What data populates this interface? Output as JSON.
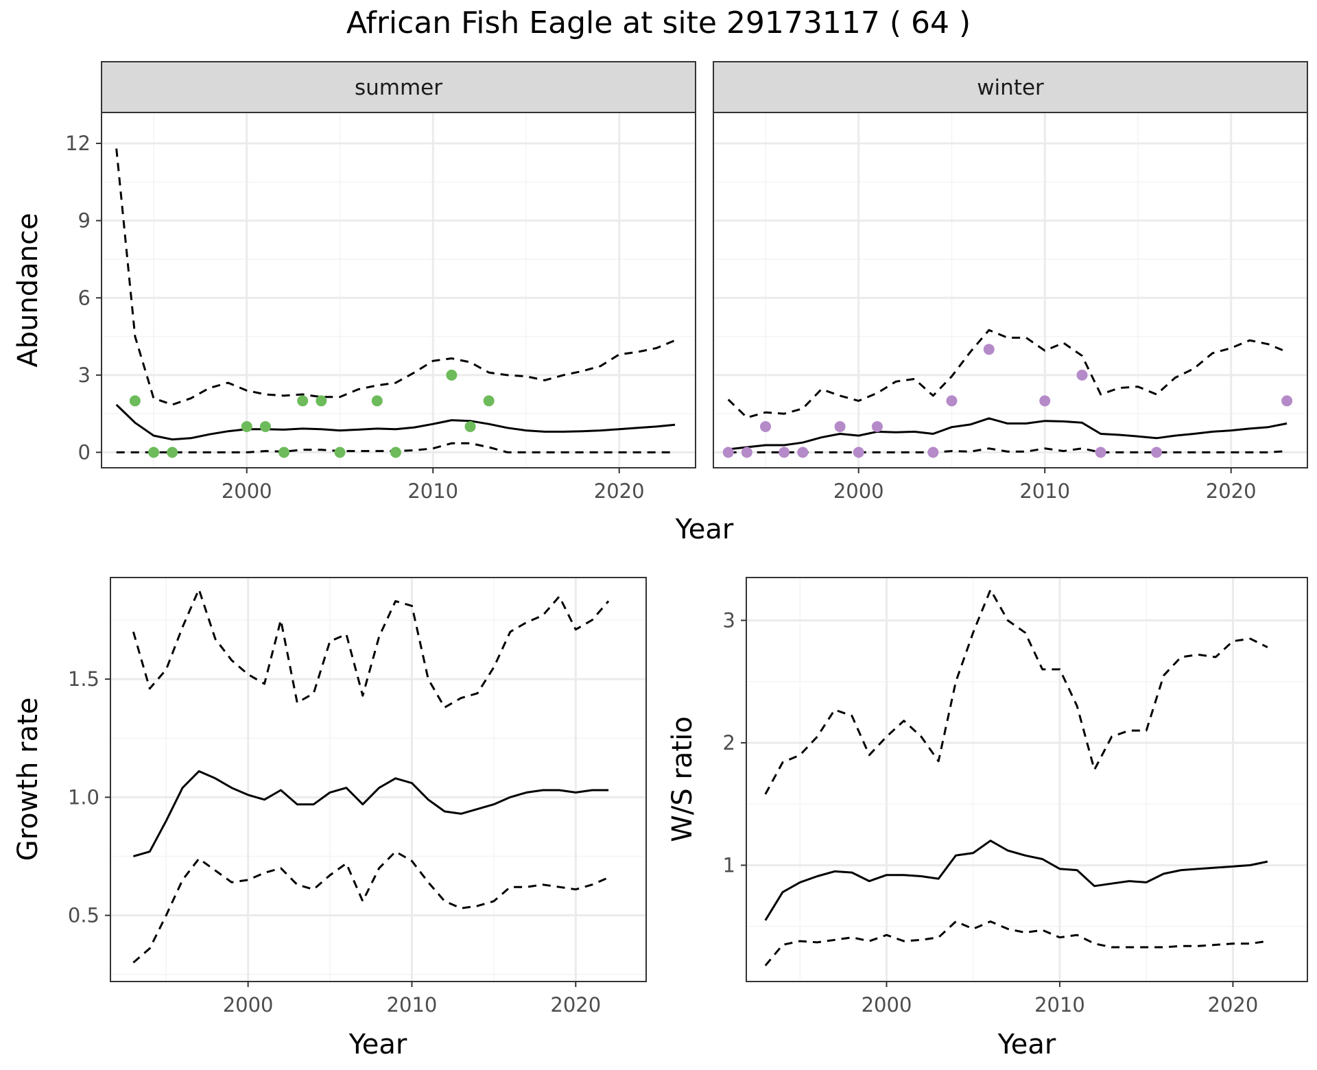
{
  "title": "African Fish Eagle at site 29173117 ( 64 )",
  "colors": {
    "summer_points": "#6dbb5b",
    "winter_points": "#b58ac9",
    "strip_bg": "#d9d9d9",
    "grid_major": "#ebebeb",
    "grid_minor": "#f4f4f4",
    "line": "#000000"
  },
  "chart_data": [
    {
      "id": "abundance_summer",
      "type": "line",
      "strip_label": "summer",
      "xlabel": "Year",
      "ylabel": "Abundance",
      "xlim": [
        1992.2,
        2024.1
      ],
      "ylim": [
        -0.6,
        13.2
      ],
      "xticks": [
        2000,
        2010,
        2020
      ],
      "yticks": [
        0,
        3,
        6,
        9,
        12
      ],
      "grid": true,
      "x": [
        1993,
        1994,
        1995,
        1996,
        1997,
        1998,
        1999,
        2000,
        2001,
        2002,
        2003,
        2004,
        2005,
        2006,
        2007,
        2008,
        2009,
        2010,
        2011,
        2012,
        2013,
        2014,
        2015,
        2016,
        2017,
        2018,
        2019,
        2020,
        2021,
        2022,
        2023
      ],
      "series": [
        {
          "name": "",
          "style": "solid",
          "values": [
            1.85,
            1.15,
            0.65,
            0.5,
            0.55,
            0.7,
            0.82,
            0.9,
            0.9,
            0.88,
            0.92,
            0.9,
            0.85,
            0.88,
            0.92,
            0.9,
            0.97,
            1.1,
            1.25,
            1.22,
            1.1,
            0.95,
            0.85,
            0.8,
            0.8,
            0.82,
            0.85,
            0.9,
            0.95,
            1.0,
            1.07
          ]
        },
        {
          "name": "",
          "style": "dashed",
          "values": [
            11.8,
            4.5,
            2.1,
            1.85,
            2.1,
            2.5,
            2.7,
            2.4,
            2.25,
            2.2,
            2.25,
            2.15,
            2.15,
            2.45,
            2.6,
            2.7,
            3.1,
            3.55,
            3.65,
            3.5,
            3.1,
            3.0,
            2.95,
            2.8,
            3.0,
            3.15,
            3.35,
            3.8,
            3.9,
            4.05,
            4.35
          ]
        },
        {
          "name": "",
          "style": "dashed",
          "values": [
            0,
            0,
            0,
            0,
            0,
            0,
            0,
            0,
            0.05,
            0.03,
            0.1,
            0.1,
            0.05,
            0.05,
            0.05,
            0.05,
            0.08,
            0.15,
            0.35,
            0.35,
            0.2,
            0,
            0,
            0,
            0,
            0,
            0,
            0,
            0,
            0,
            0
          ]
        }
      ],
      "points": {
        "x": [
          1994,
          1995,
          1996,
          2000,
          2001,
          2002,
          2003,
          2004,
          2005,
          2007,
          2008,
          2011,
          2012,
          2013
        ],
        "y": [
          2,
          0,
          0,
          1,
          1,
          0,
          2,
          2,
          0,
          2,
          0,
          3,
          1,
          2
        ]
      }
    },
    {
      "id": "abundance_winter",
      "type": "line",
      "strip_label": "winter",
      "xlabel": "Year",
      "ylabel": "Abundance",
      "xlim": [
        1992.2,
        2024.1
      ],
      "ylim": [
        -0.6,
        13.2
      ],
      "xticks": [
        2000,
        2010,
        2020
      ],
      "yticks": [
        0,
        3,
        6,
        9,
        12
      ],
      "grid": true,
      "x": [
        1993,
        1994,
        1995,
        1996,
        1997,
        1998,
        1999,
        2000,
        2001,
        2002,
        2003,
        2004,
        2005,
        2006,
        2007,
        2008,
        2009,
        2010,
        2011,
        2012,
        2013,
        2014,
        2015,
        2016,
        2017,
        2018,
        2019,
        2020,
        2021,
        2022,
        2023
      ],
      "series": [
        {
          "name": "",
          "style": "solid",
          "values": [
            0.12,
            0.2,
            0.28,
            0.28,
            0.38,
            0.58,
            0.72,
            0.65,
            0.8,
            0.78,
            0.8,
            0.72,
            0.98,
            1.08,
            1.32,
            1.12,
            1.12,
            1.22,
            1.2,
            1.15,
            0.72,
            0.68,
            0.62,
            0.55,
            0.65,
            0.72,
            0.8,
            0.85,
            0.92,
            0.98,
            1.12
          ]
        },
        {
          "name": "",
          "style": "dashed",
          "values": [
            2.05,
            1.35,
            1.55,
            1.5,
            1.7,
            2.45,
            2.2,
            2.0,
            2.3,
            2.75,
            2.85,
            2.2,
            2.95,
            3.9,
            4.75,
            4.45,
            4.45,
            3.95,
            4.25,
            3.75,
            2.25,
            2.5,
            2.55,
            2.25,
            2.9,
            3.25,
            3.85,
            4.05,
            4.35,
            4.2,
            3.9
          ]
        },
        {
          "name": "",
          "style": "dashed",
          "values": [
            0,
            0,
            0,
            0,
            0,
            0,
            0,
            0,
            0,
            0,
            0,
            0,
            0.05,
            0.03,
            0.15,
            0.03,
            0.03,
            0.15,
            0.05,
            0.15,
            0,
            0,
            0,
            0,
            0,
            0,
            0,
            0,
            0,
            0,
            0.05
          ]
        }
      ],
      "points": {
        "x": [
          1993,
          1994,
          1995,
          1996,
          1997,
          1999,
          2000,
          2001,
          2004,
          2005,
          2007,
          2010,
          2012,
          2013,
          2016,
          2023
        ],
        "y": [
          0,
          0,
          1,
          0,
          0,
          1,
          0,
          1,
          0,
          2,
          4,
          2,
          3,
          0,
          0,
          2
        ]
      }
    },
    {
      "id": "growth_rate",
      "type": "line",
      "xlabel": "Year",
      "ylabel": "Growth rate",
      "xlim": [
        1991.6,
        2024.3
      ],
      "ylim": [
        0.22,
        1.93
      ],
      "xticks": [
        2000,
        2010,
        2020
      ],
      "yticks": [
        0.5,
        1.0,
        1.5
      ],
      "ytick_labels": [
        "0.5",
        "1.0",
        "1.5"
      ],
      "grid": true,
      "x": [
        1993,
        1994,
        1995,
        1996,
        1997,
        1998,
        1999,
        2000,
        2001,
        2002,
        2003,
        2004,
        2005,
        2006,
        2007,
        2008,
        2009,
        2010,
        2011,
        2012,
        2013,
        2014,
        2015,
        2016,
        2017,
        2018,
        2019,
        2020,
        2021,
        2022
      ],
      "series": [
        {
          "name": "",
          "style": "solid",
          "values": [
            0.75,
            0.77,
            0.9,
            1.04,
            1.11,
            1.08,
            1.04,
            1.01,
            0.99,
            1.03,
            0.97,
            0.97,
            1.02,
            1.04,
            0.97,
            1.04,
            1.08,
            1.06,
            0.99,
            0.94,
            0.93,
            0.95,
            0.97,
            1.0,
            1.02,
            1.03,
            1.03,
            1.02,
            1.03,
            1.03
          ]
        },
        {
          "name": "",
          "style": "dashed",
          "values": [
            1.7,
            1.46,
            1.54,
            1.72,
            1.88,
            1.67,
            1.58,
            1.52,
            1.48,
            1.75,
            1.4,
            1.44,
            1.66,
            1.69,
            1.43,
            1.68,
            1.83,
            1.81,
            1.5,
            1.38,
            1.42,
            1.44,
            1.55,
            1.7,
            1.74,
            1.77,
            1.85,
            1.71,
            1.75,
            1.83
          ]
        },
        {
          "name": "",
          "style": "dashed",
          "values": [
            0.3,
            0.36,
            0.5,
            0.65,
            0.74,
            0.69,
            0.64,
            0.65,
            0.68,
            0.7,
            0.63,
            0.61,
            0.67,
            0.72,
            0.56,
            0.7,
            0.77,
            0.73,
            0.64,
            0.56,
            0.53,
            0.54,
            0.56,
            0.62,
            0.62,
            0.63,
            0.62,
            0.61,
            0.63,
            0.66
          ]
        }
      ]
    },
    {
      "id": "ws_ratio",
      "type": "line",
      "xlabel": "Year",
      "ylabel": "W/S ratio",
      "xlim": [
        1991.9,
        2024.3
      ],
      "ylim": [
        0.05,
        3.35
      ],
      "xticks": [
        2000,
        2010,
        2020
      ],
      "yticks": [
        1,
        2,
        3
      ],
      "grid": true,
      "x": [
        1993,
        1994,
        1995,
        1996,
        1997,
        1998,
        1999,
        2000,
        2001,
        2002,
        2003,
        2004,
        2005,
        2006,
        2007,
        2008,
        2009,
        2010,
        2011,
        2012,
        2013,
        2014,
        2015,
        2016,
        2017,
        2018,
        2019,
        2020,
        2021,
        2022
      ],
      "series": [
        {
          "name": "",
          "style": "solid",
          "values": [
            0.55,
            0.78,
            0.86,
            0.91,
            0.95,
            0.94,
            0.87,
            0.92,
            0.92,
            0.91,
            0.89,
            1.08,
            1.1,
            1.2,
            1.12,
            1.08,
            1.05,
            0.97,
            0.96,
            0.83,
            0.85,
            0.87,
            0.86,
            0.93,
            0.96,
            0.97,
            0.98,
            0.99,
            1.0,
            1.03
          ]
        },
        {
          "name": "",
          "style": "dashed",
          "values": [
            1.58,
            1.84,
            1.9,
            2.05,
            2.27,
            2.22,
            1.9,
            2.05,
            2.18,
            2.05,
            1.85,
            2.5,
            2.9,
            3.25,
            3.0,
            2.9,
            2.6,
            2.6,
            2.3,
            1.78,
            2.05,
            2.1,
            2.1,
            2.55,
            2.7,
            2.72,
            2.7,
            2.83,
            2.85,
            2.78
          ]
        },
        {
          "name": "",
          "style": "dashed",
          "values": [
            0.18,
            0.35,
            0.38,
            0.37,
            0.39,
            0.41,
            0.38,
            0.43,
            0.38,
            0.39,
            0.41,
            0.54,
            0.48,
            0.54,
            0.48,
            0.45,
            0.47,
            0.41,
            0.43,
            0.36,
            0.33,
            0.33,
            0.33,
            0.33,
            0.34,
            0.34,
            0.35,
            0.36,
            0.36,
            0.38
          ]
        }
      ]
    }
  ]
}
